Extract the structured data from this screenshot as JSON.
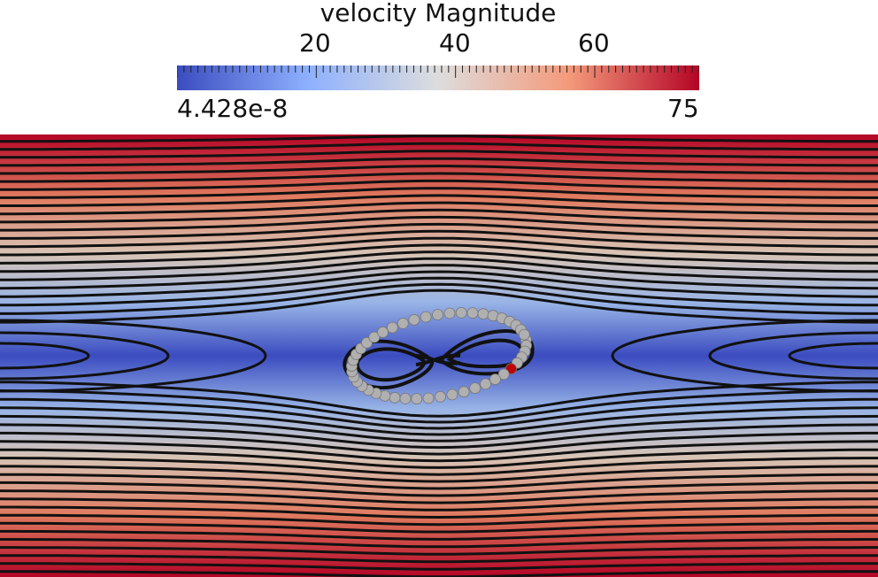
{
  "colorbar": {
    "title": "velocity Magnitude",
    "min_label": "4.428e-8",
    "max_label": "75",
    "min_value": 4.428e-08,
    "max_value": 75,
    "tick_labels": [
      "20",
      "40",
      "60"
    ],
    "tick_values": [
      20,
      40,
      60
    ],
    "colors": [
      "#3b4cc0",
      "#8db0fe",
      "#dddddd",
      "#f49a7b",
      "#b40426"
    ]
  },
  "scene": {
    "streamline_color": "#111111",
    "particle_color": "#b0b0b0",
    "highlight_particle_color": "#c00000"
  }
}
